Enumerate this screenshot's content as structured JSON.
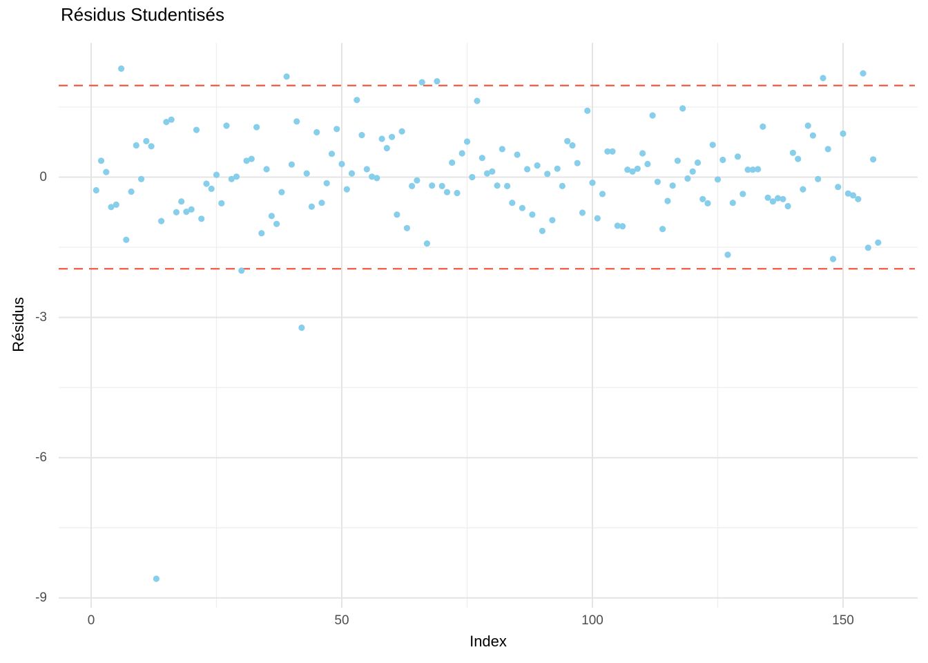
{
  "title": "Résidus Studentisés",
  "chart_data": {
    "type": "scatter",
    "title": "Résidus Studentisés",
    "xlabel": "Index",
    "ylabel": "Résidus",
    "x_ticks": [
      0,
      50,
      100,
      150
    ],
    "x_minor_ticks": [
      25,
      75,
      125
    ],
    "y_ticks": [
      0,
      -3,
      -6,
      -9
    ],
    "y_minor_ticks": [
      1.5,
      -1.5,
      -4.5,
      -7.5
    ],
    "xlim": [
      -6.5,
      165
    ],
    "ylim": [
      -9.2,
      2.9
    ],
    "grid": true,
    "legend_position": "none",
    "threshold_lines": [
      1.96,
      -1.96
    ],
    "threshold_line_style": "dashed",
    "threshold_color": "#F4614B",
    "point_color": "#87CEEB",
    "major_grid_color": "#E4E4E4",
    "minor_grid_color": "#EFEFEF",
    "axis_text_color": "#4d4d4d",
    "x_start_index": 1,
    "residuals": [
      -0.28,
      0.35,
      0.11,
      -0.64,
      -0.59,
      2.32,
      -1.34,
      -0.31,
      0.68,
      -0.04,
      0.77,
      0.66,
      -8.59,
      -0.94,
      1.18,
      1.23,
      -0.75,
      -0.52,
      -0.74,
      -0.69,
      1.01,
      -0.89,
      -0.14,
      -0.25,
      0.05,
      -0.56,
      1.1,
      -0.04,
      0.01,
      -2.0,
      0.35,
      0.39,
      1.07,
      -1.2,
      0.17,
      -0.83,
      -1.0,
      -0.32,
      2.15,
      0.27,
      1.19,
      -3.22,
      0.08,
      -0.63,
      0.96,
      -0.55,
      -0.13,
      0.5,
      1.03,
      0.28,
      -0.26,
      0.08,
      1.65,
      0.9,
      0.17,
      0.01,
      -0.02,
      0.82,
      0.62,
      0.86,
      -0.8,
      0.98,
      -1.09,
      -0.19,
      -0.07,
      2.03,
      -1.42,
      -0.18,
      2.05,
      -0.19,
      -0.32,
      0.31,
      -0.34,
      0.51,
      0.76,
      0.0,
      1.63,
      0.41,
      0.08,
      0.12,
      -0.18,
      0.6,
      -0.19,
      -0.55,
      0.48,
      -0.66,
      0.17,
      -0.8,
      0.25,
      -1.15,
      0.07,
      -0.92,
      0.18,
      -0.19,
      0.77,
      0.68,
      0.3,
      -0.76,
      1.42,
      -0.12,
      -0.88,
      -0.36,
      0.55,
      0.55,
      -1.04,
      -1.05,
      0.16,
      0.12,
      0.18,
      0.51,
      0.28,
      1.32,
      -0.1,
      -1.11,
      -0.51,
      -0.18,
      0.35,
      1.47,
      -0.03,
      0.12,
      0.31,
      -0.47,
      -0.56,
      0.69,
      -0.05,
      0.37,
      -1.66,
      -0.55,
      0.44,
      -0.36,
      0.16,
      0.16,
      0.17,
      1.08,
      -0.44,
      -0.52,
      -0.45,
      -0.47,
      -0.62,
      0.52,
      0.39,
      -0.26,
      1.1,
      0.89,
      -0.04,
      2.12,
      0.6,
      -1.75,
      -0.21,
      0.93,
      -0.35,
      -0.39,
      -0.47,
      2.22,
      -1.51,
      0.38,
      -1.4
    ]
  }
}
